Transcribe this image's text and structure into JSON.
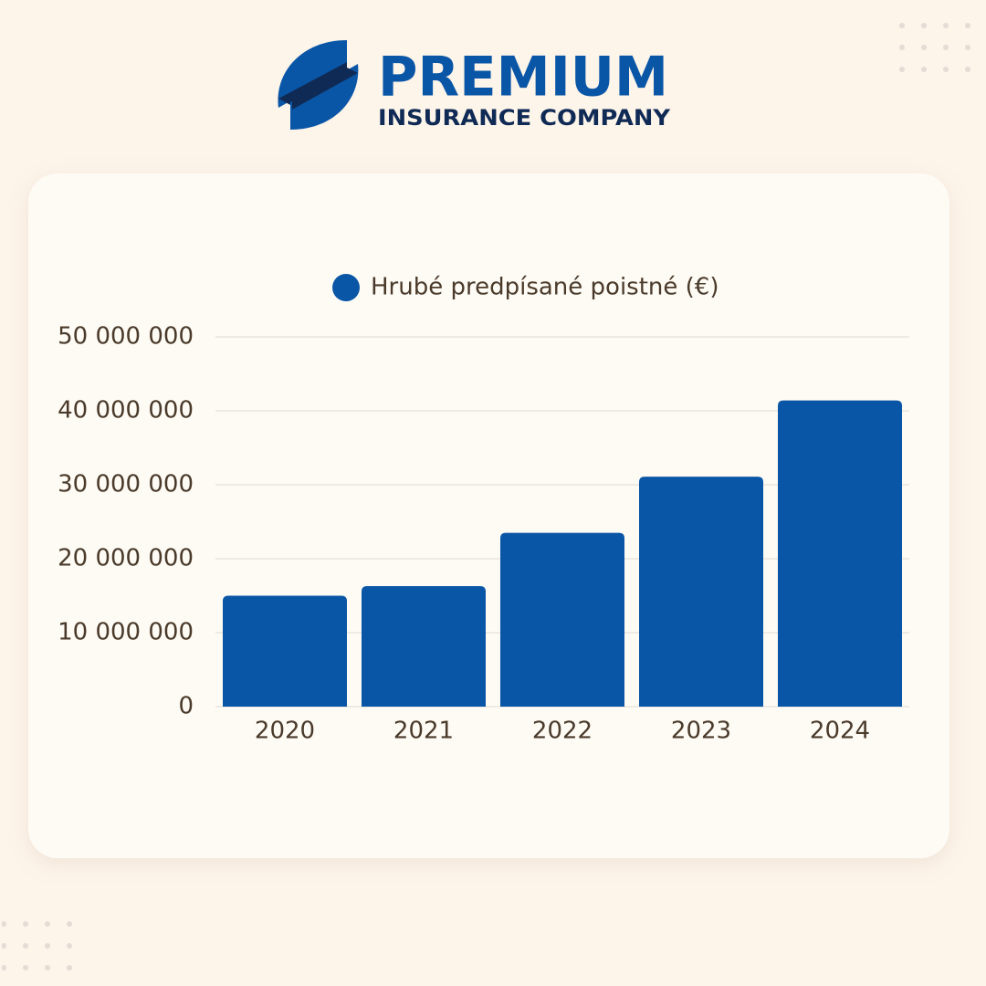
{
  "brand": {
    "name": "PREMIUM",
    "tagline": "INSURANCE COMPANY"
  },
  "chart_data": {
    "type": "bar",
    "categories": [
      "2020",
      "2021",
      "2022",
      "2023",
      "2024"
    ],
    "series": [
      {
        "name": "Hrubé predpísané poistné (€)",
        "color": "#0a56a6",
        "values": [
          15000000,
          16300000,
          23500000,
          31100000,
          41400000
        ]
      }
    ],
    "ylim": [
      0,
      50000000
    ],
    "yticks": [
      0,
      {
        "value": 10000000,
        "label": "10 000 000"
      },
      {
        "value": 20000000,
        "label": "20 000 000"
      },
      {
        "value": 30000000,
        "label": "30 000 000"
      },
      {
        "value": 40000000,
        "label": "40 000 000"
      },
      {
        "value": 50000000,
        "label": "50 000 000"
      }
    ],
    "grid": true
  }
}
